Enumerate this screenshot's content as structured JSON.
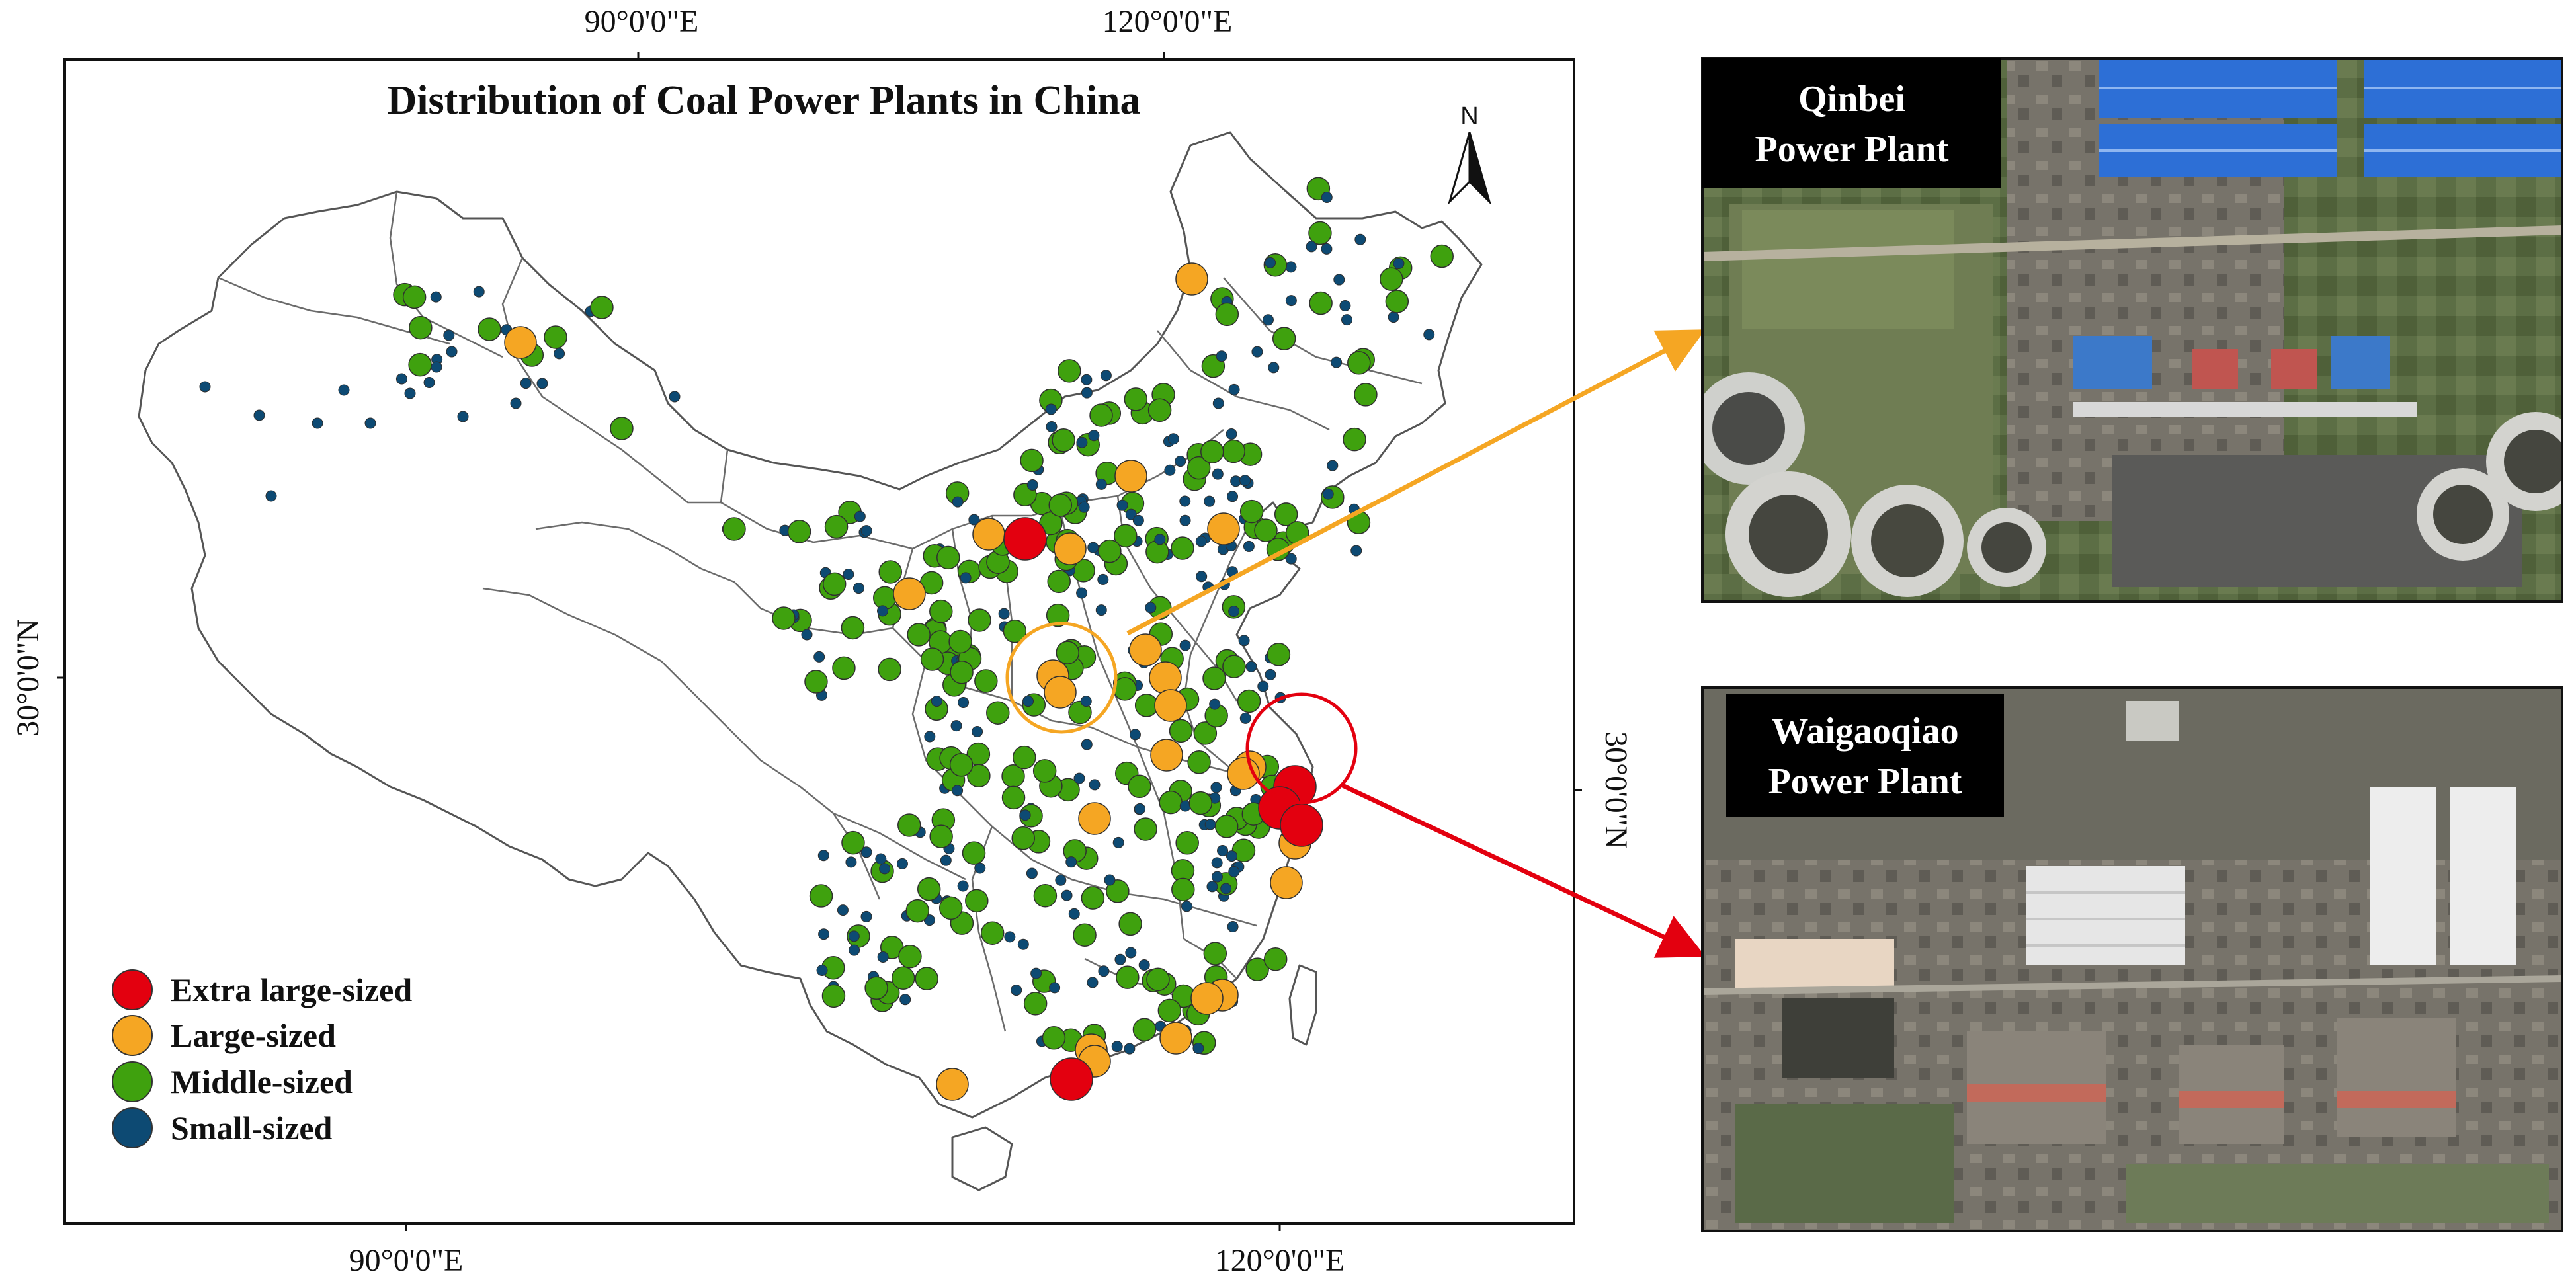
{
  "map": {
    "title": "Distribution of Coal Power Plants in China",
    "north_label": "N",
    "lon_labels": [
      "90°0'0\"E",
      "120°0'0\"E"
    ],
    "lat_label": "30°0'0\"N"
  },
  "legend": [
    {
      "label": "Extra large-sized",
      "color": "#e3000f"
    },
    {
      "label": "Large-sized",
      "color": "#f5a623"
    },
    {
      "label": "Middle-sized",
      "color": "#3fa10e"
    },
    {
      "label": "Small-sized",
      "color": "#0d4a73"
    }
  ],
  "insets": [
    {
      "name": "Qinbei\nPower Plant",
      "line1": "Qinbei",
      "line2": "Power Plant",
      "pointer_color": "#f5a623"
    },
    {
      "name": "Waigaoqiao\nPower Plant",
      "line1": "Waigaoqiao",
      "line2": "Power Plant",
      "pointer_color": "#e3000f"
    }
  ]
}
